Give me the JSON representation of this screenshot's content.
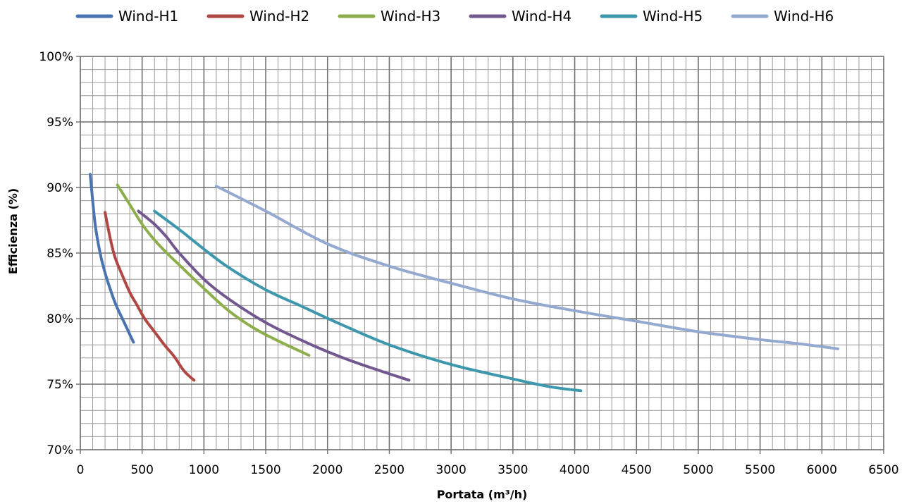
{
  "chart_data": {
    "type": "line",
    "title": "",
    "xlabel": "Portata (m³/h)",
    "ylabel": "Efficienza (%)",
    "xlim": [
      0,
      6500
    ],
    "ylim": [
      70,
      100
    ],
    "x_major_step": 500,
    "x_minor_step": 100,
    "y_major_step": 5,
    "y_minor_step": 1,
    "grid": true,
    "legend_position": "top",
    "x_tick_labels": [
      "0",
      "500",
      "1000",
      "1500",
      "2000",
      "2500",
      "3000",
      "3500",
      "4000",
      "4500",
      "5000",
      "5500",
      "6000",
      "6500"
    ],
    "y_tick_labels": [
      "70%",
      "75%",
      "80%",
      "85%",
      "90%",
      "95%",
      "100%"
    ],
    "series": [
      {
        "name": "Wind-H1",
        "color": "#4a74b1",
        "x": [
          80,
          120,
          160,
          200,
          240,
          290,
          340,
          390,
          430
        ],
        "y": [
          91.0,
          87.2,
          85.0,
          83.5,
          82.3,
          81.0,
          80.0,
          79.0,
          78.2
        ]
      },
      {
        "name": "Wind-H2",
        "color": "#b04744",
        "x": [
          200,
          240,
          280,
          340,
          400,
          460,
          520,
          600,
          680,
          760,
          840,
          920
        ],
        "y": [
          88.1,
          86.2,
          84.7,
          83.3,
          82.0,
          81.0,
          80.0,
          79.0,
          78.0,
          77.1,
          76.0,
          75.3
        ]
      },
      {
        "name": "Wind-H3",
        "color": "#8dae4a",
        "x": [
          300,
          400,
          500,
          600,
          700,
          800,
          1000,
          1200,
          1400,
          1600,
          1850
        ],
        "y": [
          90.2,
          88.7,
          87.2,
          86.0,
          85.0,
          84.1,
          82.3,
          80.6,
          79.3,
          78.3,
          77.2
        ]
      },
      {
        "name": "Wind-H4",
        "color": "#71588f",
        "x": [
          470,
          600,
          700,
          800,
          1000,
          1200,
          1500,
          1800,
          2100,
          2400,
          2660
        ],
        "y": [
          88.2,
          87.2,
          86.2,
          85.0,
          83.0,
          81.5,
          79.7,
          78.3,
          77.1,
          76.1,
          75.3
        ]
      },
      {
        "name": "Wind-H5",
        "color": "#3d98ad",
        "x": [
          600,
          800,
          1000,
          1200,
          1500,
          1800,
          2100,
          2500,
          3000,
          3500,
          3800,
          4050
        ],
        "y": [
          88.2,
          86.8,
          85.3,
          83.9,
          82.2,
          80.9,
          79.6,
          78.0,
          76.5,
          75.4,
          74.8,
          74.5
        ]
      },
      {
        "name": "Wind-H6",
        "color": "#93a9cf",
        "x": [
          1100,
          1500,
          2000,
          2500,
          3000,
          3500,
          4000,
          4500,
          5000,
          5500,
          5800,
          6130
        ],
        "y": [
          90.1,
          88.2,
          85.7,
          84.0,
          82.7,
          81.5,
          80.6,
          79.8,
          79.0,
          78.4,
          78.1,
          77.7
        ]
      }
    ]
  }
}
